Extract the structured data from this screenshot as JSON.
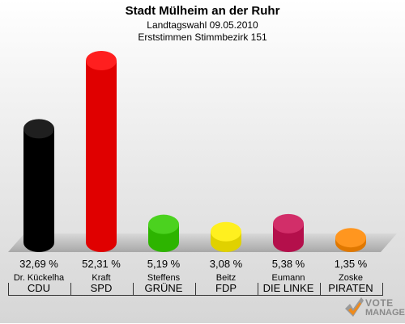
{
  "header": {
    "title": "Stadt Mülheim an der Ruhr",
    "subtitle": "Landtagswahl 09.05.2010",
    "subtitle2": "Erststimmen Stimmbezirk 151"
  },
  "chart_data": {
    "type": "bar",
    "title": "Stadt Mülheim an der Ruhr",
    "subtitle": "Landtagswahl 09.05.2010 · Erststimmen Stimmbezirk 151",
    "categories": [
      "CDU",
      "SPD",
      "GRÜNE",
      "FDP",
      "DIE LINKE",
      "PIRATEN"
    ],
    "candidates": [
      "Dr. Kückelha",
      "Kraft",
      "Steffens",
      "Beitz",
      "Eumann",
      "Zoske"
    ],
    "values": [
      32.69,
      52.31,
      5.19,
      3.08,
      5.38,
      1.35
    ],
    "value_labels": [
      "32,69 %",
      "52,31 %",
      "5,19 %",
      "3,08 %",
      "5,38 %",
      "1,35 %"
    ],
    "colors": [
      "#000000",
      "#ff0000",
      "#33cc00",
      "#ffee00",
      "#cc1155",
      "#ff8800"
    ],
    "ylim": [
      0,
      52.31
    ],
    "grid": false,
    "legend": "none"
  },
  "logo": {
    "line1": "VOTE",
    "line2": "MANAGER"
  }
}
